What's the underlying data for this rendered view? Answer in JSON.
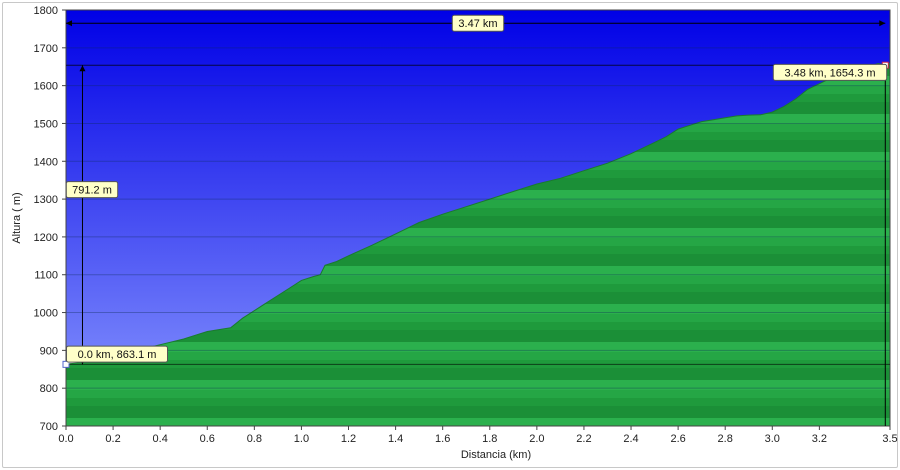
{
  "chart_data": {
    "type": "area",
    "xlabel": "Distancia  (km)",
    "ylabel": "Altura ( m)",
    "xlim": [
      0,
      3.5
    ],
    "ylim": [
      700,
      1800
    ],
    "xticks": [
      "0.0",
      "0.2",
      "0.4",
      "0.6",
      "0.8",
      "1.0",
      "1.2",
      "1.4",
      "1.6",
      "1.8",
      "2.0",
      "2.2",
      "2.4",
      "2.6",
      "2.8",
      "3.0",
      "3.2",
      "3.5"
    ],
    "yticks": [
      "700",
      "800",
      "900",
      "1000",
      "1100",
      "1200",
      "1300",
      "1400",
      "1500",
      "1600",
      "1700",
      "1800"
    ],
    "grid": true,
    "x": [
      0.0,
      0.1,
      0.2,
      0.3,
      0.4,
      0.5,
      0.55,
      0.6,
      0.65,
      0.7,
      0.75,
      0.8,
      0.85,
      0.9,
      0.95,
      1.0,
      1.05,
      1.08,
      1.1,
      1.15,
      1.2,
      1.3,
      1.4,
      1.5,
      1.6,
      1.7,
      1.8,
      1.9,
      2.0,
      2.1,
      2.2,
      2.3,
      2.4,
      2.5,
      2.55,
      2.6,
      2.65,
      2.7,
      2.75,
      2.8,
      2.85,
      2.9,
      2.95,
      3.0,
      3.05,
      3.1,
      3.15,
      3.2,
      3.25,
      3.3,
      3.35,
      3.4,
      3.45,
      3.48
    ],
    "y": [
      863,
      875,
      885,
      900,
      915,
      930,
      940,
      950,
      955,
      960,
      985,
      1005,
      1025,
      1045,
      1065,
      1085,
      1095,
      1100,
      1125,
      1135,
      1150,
      1178,
      1208,
      1238,
      1260,
      1280,
      1300,
      1320,
      1340,
      1355,
      1375,
      1395,
      1420,
      1450,
      1465,
      1485,
      1495,
      1505,
      1510,
      1515,
      1520,
      1522,
      1523,
      1530,
      1545,
      1565,
      1590,
      1605,
      1620,
      1630,
      1650,
      1650,
      1658,
      1654
    ],
    "annotations": [
      {
        "label": "3.47 km"
      },
      {
        "label": "791.2 m"
      },
      {
        "label": "0.0 km, 863.1 m"
      },
      {
        "label": "3.48 km, 1654.3 m"
      }
    ],
    "colors": {
      "sky_top": "#0000e6",
      "sky_bottom": "#8c9bff",
      "terrain_dark": "#1b8a35",
      "terrain_light": "#2bbf4c",
      "annotation_fill": "#ffffc8"
    }
  }
}
